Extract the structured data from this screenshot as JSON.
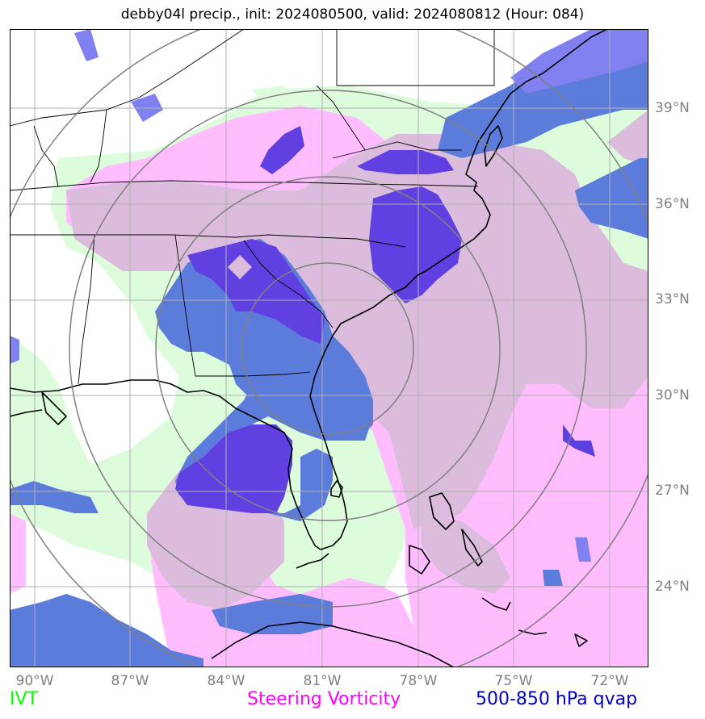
{
  "title": "debby04l precip., init: 2024080500, valid: 2024080812 (Hour: 084)",
  "lat_labels": [
    "39°N",
    "36°N",
    "33°N",
    "30°N",
    "27°N",
    "24°N"
  ],
  "lon_labels": [
    "90°W",
    "87°W",
    "84°W",
    "81°W",
    "78°W",
    "75°W",
    "72°W"
  ],
  "legend": {
    "ivt": {
      "label": "IVT",
      "color": "#00ff00"
    },
    "vorticity": {
      "label": "Steering Vorticity",
      "color": "#ff00ff"
    },
    "qvap": {
      "label": "500-850 hPa qvap",
      "color": "#0000cc"
    }
  },
  "colors": {
    "ivt_fill": "#dcfcdc",
    "vorticity_fill": "#ffbcff",
    "mixed_fill": "#dcbcdc",
    "qvap_fill": "#5c7cdc",
    "qvap_strong": "#6040e0",
    "qvap_light": "#8080f0",
    "grid": "#b0b0b0",
    "rings": "#808080"
  }
}
